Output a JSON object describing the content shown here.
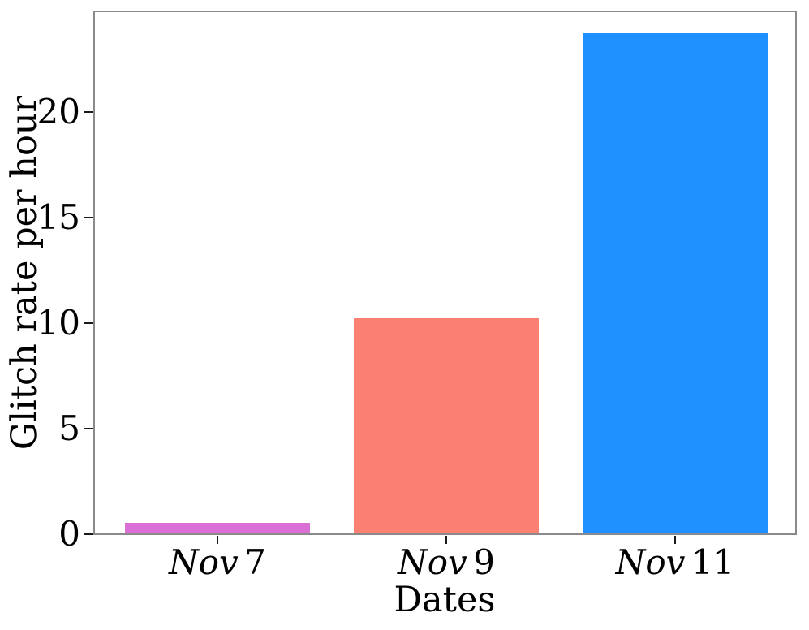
{
  "figure": {
    "background": "#ffffff",
    "spine_color": "#8a8a8a",
    "tick_color": "#1a1a1a",
    "text_color": "#000000"
  },
  "chart_data": {
    "type": "bar",
    "title": "",
    "xlabel": "Dates",
    "ylabel": "Glitch rate per hour",
    "categories": [
      "Nov 7",
      "Nov 9",
      "Nov 11"
    ],
    "category_parts": [
      {
        "word": "Nov",
        "num": "7"
      },
      {
        "word": "Nov",
        "num": "9"
      },
      {
        "word": "Nov",
        "num": "11"
      }
    ],
    "values": [
      0.5,
      10.2,
      23.7
    ],
    "bar_colors": [
      "#DA70D6",
      "#FA8072",
      "#1E90FF"
    ],
    "yticks": [
      0,
      5,
      10,
      15,
      20
    ],
    "ylim": [
      0,
      24.9
    ],
    "grid": false,
    "legend_position": "none"
  }
}
